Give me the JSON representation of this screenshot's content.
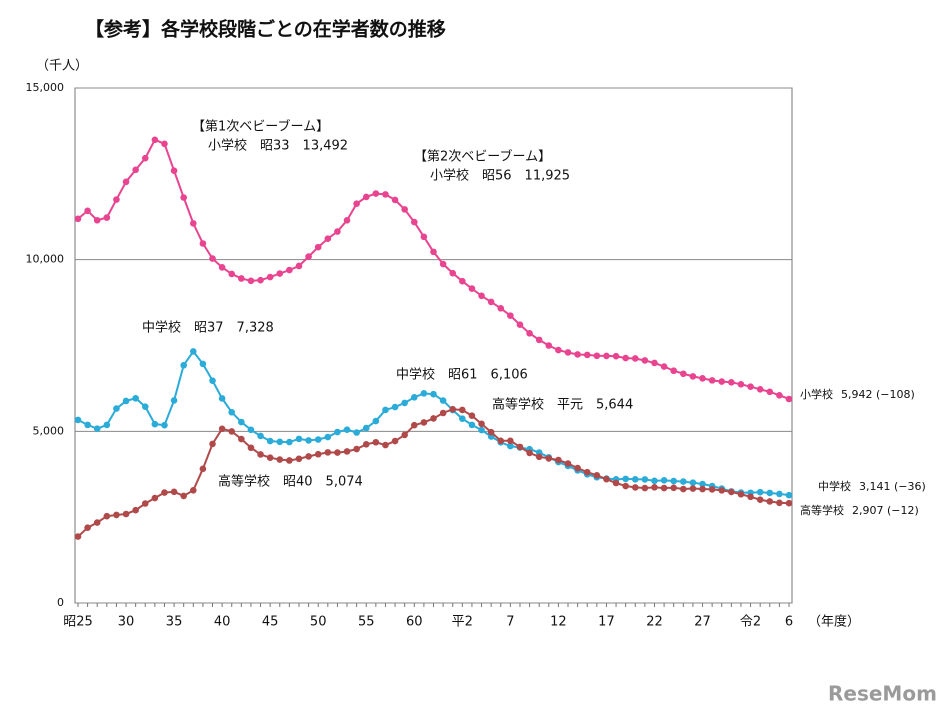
{
  "chart_data": {
    "type": "line",
    "title": "【参考】各学校段階ごとの在学者数の推移",
    "y_unit": "（千人）",
    "x_unit": "（年度）",
    "logo": "ReseMom",
    "categories": [
      "昭25",
      null,
      null,
      null,
      null,
      "30",
      null,
      null,
      null,
      null,
      "35",
      null,
      null,
      null,
      null,
      "40",
      null,
      null,
      null,
      null,
      "45",
      null,
      null,
      null,
      null,
      "50",
      null,
      null,
      null,
      null,
      "55",
      null,
      null,
      null,
      null,
      "60",
      null,
      null,
      null,
      null,
      "平2",
      null,
      null,
      null,
      null,
      "7",
      null,
      null,
      null,
      null,
      "12",
      null,
      null,
      null,
      null,
      "17",
      null,
      null,
      null,
      null,
      "22",
      null,
      null,
      null,
      null,
      "27",
      null,
      null,
      null,
      null,
      "令2",
      null,
      null,
      null,
      "6"
    ],
    "ylim": [
      0,
      15000
    ],
    "yticks": [
      0,
      {
        "value": 5000,
        "label": "5,000"
      },
      {
        "value": 10000,
        "label": "10,000"
      },
      {
        "value": 15000,
        "label": "15,000"
      }
    ],
    "grid": true,
    "series": [
      {
        "name": "小学校",
        "color": "#e8448f",
        "end_label": "5,942 (−108)",
        "values": [
          11191,
          11423,
          11148,
          11225,
          11751,
          12267,
          12616,
          12956,
          13492,
          13375,
          12591,
          11811,
          11057,
          10471,
          10031,
          9776,
          9584,
          9452,
          9383,
          9403,
          9493,
          9596,
          9696,
          9816,
          10089,
          10365,
          10610,
          10820,
          11146,
          11630,
          11827,
          11925,
          11902,
          11739,
          11465,
          11095,
          10665,
          10227,
          9873,
          9607,
          9373,
          9157,
          8948,
          8769,
          8583,
          8370,
          8105,
          7855,
          7664,
          7500,
          7366,
          7297,
          7239,
          7227,
          7201,
          7197,
          7188,
          7133,
          7122,
          7064,
          6993,
          6887,
          6765,
          6677,
          6601,
          6543,
          6484,
          6449,
          6428,
          6369,
          6301,
          6223,
          6151,
          6050,
          5942
        ]
      },
      {
        "name": "中学校",
        "color": "#2aabd8",
        "end_label": "3,141 (−36)",
        "values": [
          5333,
          5188,
          5076,
          5187,
          5664,
          5884,
          5963,
          5719,
          5210,
          5180,
          5900,
          6925,
          7328,
          6964,
          6476,
          5957,
          5556,
          5271,
          5044,
          4865,
          4717,
          4694,
          4688,
          4780,
          4736,
          4762,
          4833,
          4978,
          5048,
          4966,
          5094,
          5300,
          5623,
          5706,
          5828,
          5990,
          6106,
          6081,
          5896,
          5619,
          5369,
          5188,
          5037,
          4850,
          4681,
          4570,
          4527,
          4481,
          4381,
          4244,
          4104,
          3992,
          3863,
          3748,
          3663,
          3626,
          3602,
          3615,
          3603,
          3600,
          3558,
          3573,
          3552,
          3536,
          3504,
          3465,
          3406,
          3333,
          3251,
          3218,
          3211,
          3229,
          3205,
          3177,
          3141
        ]
      },
      {
        "name": "高等学校",
        "color": "#b04a4a",
        "end_label": "2,907 (−12)",
        "values": [
          1935,
          2193,
          2344,
          2528,
          2565,
          2592,
          2703,
          2898,
          3057,
          3216,
          3239,
          3119,
          3282,
          3908,
          4634,
          5074,
          4997,
          4776,
          4522,
          4327,
          4232,
          4178,
          4151,
          4201,
          4270,
          4333,
          4387,
          4381,
          4414,
          4485,
          4622,
          4682,
          4601,
          4716,
          4896,
          5178,
          5259,
          5375,
          5534,
          5644,
          5623,
          5455,
          5218,
          4976,
          4725,
          4725,
          4547,
          4371,
          4258,
          4212,
          4165,
          4062,
          3929,
          3810,
          3720,
          3605,
          3495,
          3407,
          3367,
          3348,
          3369,
          3349,
          3356,
          3320,
          3334,
          3319,
          3309,
          3280,
          3236,
          3168,
          3093,
          3008,
          2957,
          2919,
          2907
        ]
      }
    ],
    "annotations": [
      "【第1次ベビーブーム】",
      "小学校　昭33　13,492",
      "【第2次ベビーブーム】",
      "小学校　昭56　11,925",
      "中学校　昭37　7,328",
      "中学校　昭61　6,106",
      "高等学校　平元　5,644",
      "高等学校　昭40　5,074"
    ]
  }
}
